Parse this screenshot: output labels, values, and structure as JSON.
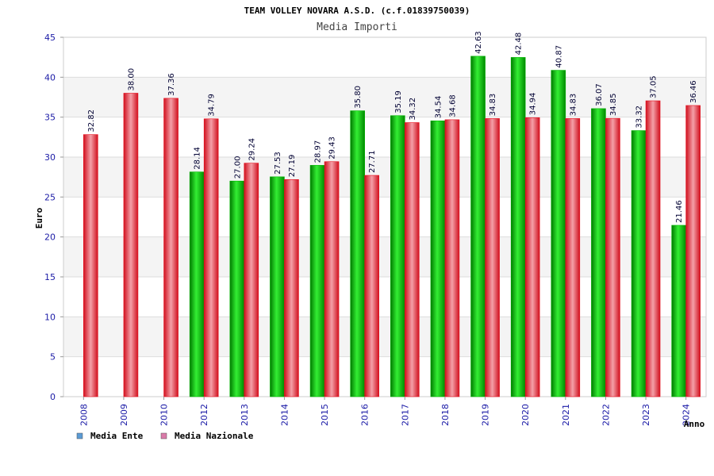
{
  "chart_data": {
    "type": "bar",
    "title": "TEAM VOLLEY NOVARA A.S.D. (c.f.01839750039)",
    "subtitle": "Media Importi",
    "xlabel": "Anno",
    "ylabel": "Euro",
    "ylim": [
      0,
      45
    ],
    "yticks": [
      "0",
      "5",
      "10",
      "15",
      "20",
      "25",
      "30",
      "35",
      "40",
      "45"
    ],
    "grid": true,
    "legend_position": "bottom-left",
    "categories": [
      "2008",
      "2009",
      "2010",
      "2012",
      "2013",
      "2014",
      "2015",
      "2016",
      "2017",
      "2018",
      "2019",
      "2020",
      "2021",
      "2022",
      "2023",
      "2024"
    ],
    "series": [
      {
        "name": "Media Ente",
        "color": "#00b400",
        "legend_color": "#5b9bd5",
        "values": [
          null,
          null,
          null,
          28.14,
          27.0,
          27.53,
          28.97,
          35.8,
          35.19,
          34.54,
          42.63,
          42.48,
          40.87,
          36.07,
          33.32,
          21.46
        ],
        "labels": [
          "",
          "",
          "",
          "28.14",
          "27.00",
          "27.53",
          "28.97",
          "35.80",
          "35.19",
          "34.54",
          "42.63",
          "42.48",
          "40.87",
          "36.07",
          "33.32",
          "21.46"
        ]
      },
      {
        "name": "Media Nazionale",
        "color": "#e8101e",
        "legend_color": "#d97aa8",
        "values": [
          32.82,
          38.0,
          37.36,
          34.79,
          29.24,
          27.19,
          29.43,
          27.71,
          34.32,
          34.68,
          34.83,
          34.94,
          34.83,
          34.85,
          37.05,
          36.46
        ],
        "labels": [
          "32.82",
          "38.00",
          "37.36",
          "34.79",
          "29.24",
          "27.19",
          "29.43",
          "27.71",
          "34.32",
          "34.68",
          "34.83",
          "34.94",
          "34.83",
          "34.85",
          "37.05",
          "36.46"
        ]
      }
    ]
  }
}
